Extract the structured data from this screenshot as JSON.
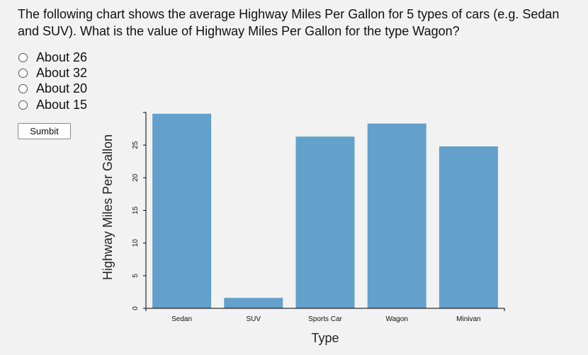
{
  "question": "The following chart shows the average Highway Miles Per Gallon for 5 types of cars (e.g. Sedan and SUV). What is the value of Highway Miles Per Gallon for the type Wagon?",
  "options": [
    "About 26",
    "About 32",
    "About 20",
    "About 15"
  ],
  "submit_label": "Sumbit",
  "chart_data": {
    "type": "bar",
    "categories": [
      "Sedan",
      "SUV",
      "Sports Car",
      "Wagon",
      "Minivan"
    ],
    "values": [
      29.8,
      1.6,
      26.3,
      28.3,
      24.8
    ],
    "xlabel": "Type",
    "ylabel": "Highway Miles Per Gallon",
    "ylim": [
      0,
      30
    ],
    "yticks": [
      0,
      5,
      10,
      15,
      20,
      25
    ],
    "bar_color": "#63a0cc",
    "grid": false
  }
}
